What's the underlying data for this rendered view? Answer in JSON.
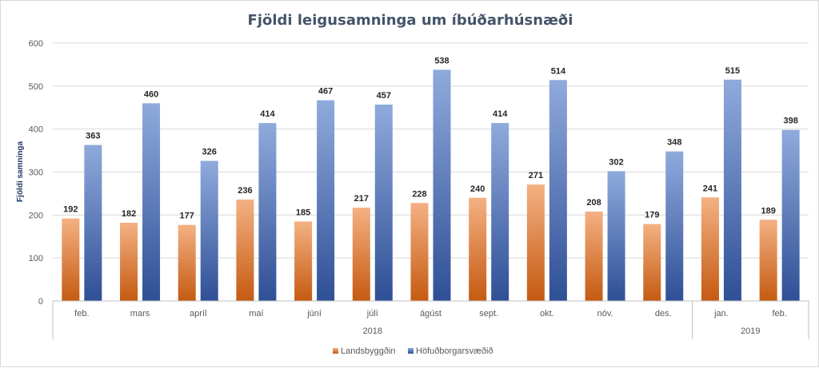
{
  "chart_data": {
    "type": "bar",
    "title": "Fjöldi leigusamninga  um íbúðarhúsnæði",
    "ylabel": "Fjöldi samninga",
    "xlabel": "",
    "ylim": [
      0,
      600
    ],
    "yticks": [
      0,
      100,
      200,
      300,
      400,
      500,
      600
    ],
    "grid": true,
    "legend_position": "bottom",
    "categories": [
      "feb.",
      "mars",
      "apríl",
      "maí",
      "júní",
      "júlí",
      "ágúst",
      "sept.",
      "okt.",
      "nóv.",
      "des.",
      "jan.",
      "feb."
    ],
    "groups": [
      {
        "label": "2018",
        "start": 0,
        "end": 10
      },
      {
        "label": "2019",
        "start": 11,
        "end": 12
      }
    ],
    "series": [
      {
        "name": "Landsbyggðin",
        "color_top": "#f4b183",
        "color_bottom": "#c55a11",
        "values": [
          192,
          182,
          177,
          236,
          185,
          217,
          228,
          240,
          271,
          208,
          179,
          241,
          189
        ]
      },
      {
        "name": "Höfuðborgarsvæðið",
        "color_top": "#8faadc",
        "color_bottom": "#2f4f96",
        "values": [
          363,
          460,
          326,
          414,
          467,
          457,
          538,
          414,
          514,
          302,
          348,
          515,
          398
        ]
      }
    ]
  }
}
